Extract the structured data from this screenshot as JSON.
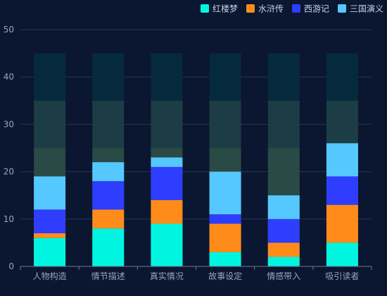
{
  "chart_data": {
    "type": "bar",
    "stacked": true,
    "categories": [
      "人物构造",
      "情节描述",
      "真实情况",
      "故事设定",
      "情感带入",
      "吸引读者"
    ],
    "series": [
      {
        "name": "红楼梦",
        "color": "#00f5e1",
        "values": [
          6,
          8,
          9,
          3,
          2,
          5
        ]
      },
      {
        "name": "水浒传",
        "color": "#ff8c1a",
        "values": [
          1,
          4,
          5,
          6,
          3,
          8
        ]
      },
      {
        "name": "西游记",
        "color": "#2f3dff",
        "values": [
          5,
          6,
          7,
          2,
          5,
          6
        ]
      },
      {
        "name": "三国演义",
        "color": "#55c8ff",
        "values": [
          7,
          4,
          2,
          9,
          5,
          7
        ]
      }
    ],
    "background_bands": [
      {
        "from": 0,
        "to": 25,
        "color": "#2a4a45"
      },
      {
        "from": 25,
        "to": 35,
        "color": "#1c3d45"
      },
      {
        "from": 35,
        "to": 45,
        "color": "#062a3d"
      }
    ],
    "ylim": [
      0,
      50
    ],
    "yticks": [
      0,
      10,
      20,
      30,
      40,
      50
    ],
    "grid": true,
    "legend_position": "top-right",
    "colors": {
      "background": "#0b1630",
      "axis_text": "#9aa4b8",
      "grid": "#2a3650",
      "axis_line": "#6b7a90",
      "legend_text": "#c8d0e0"
    }
  }
}
